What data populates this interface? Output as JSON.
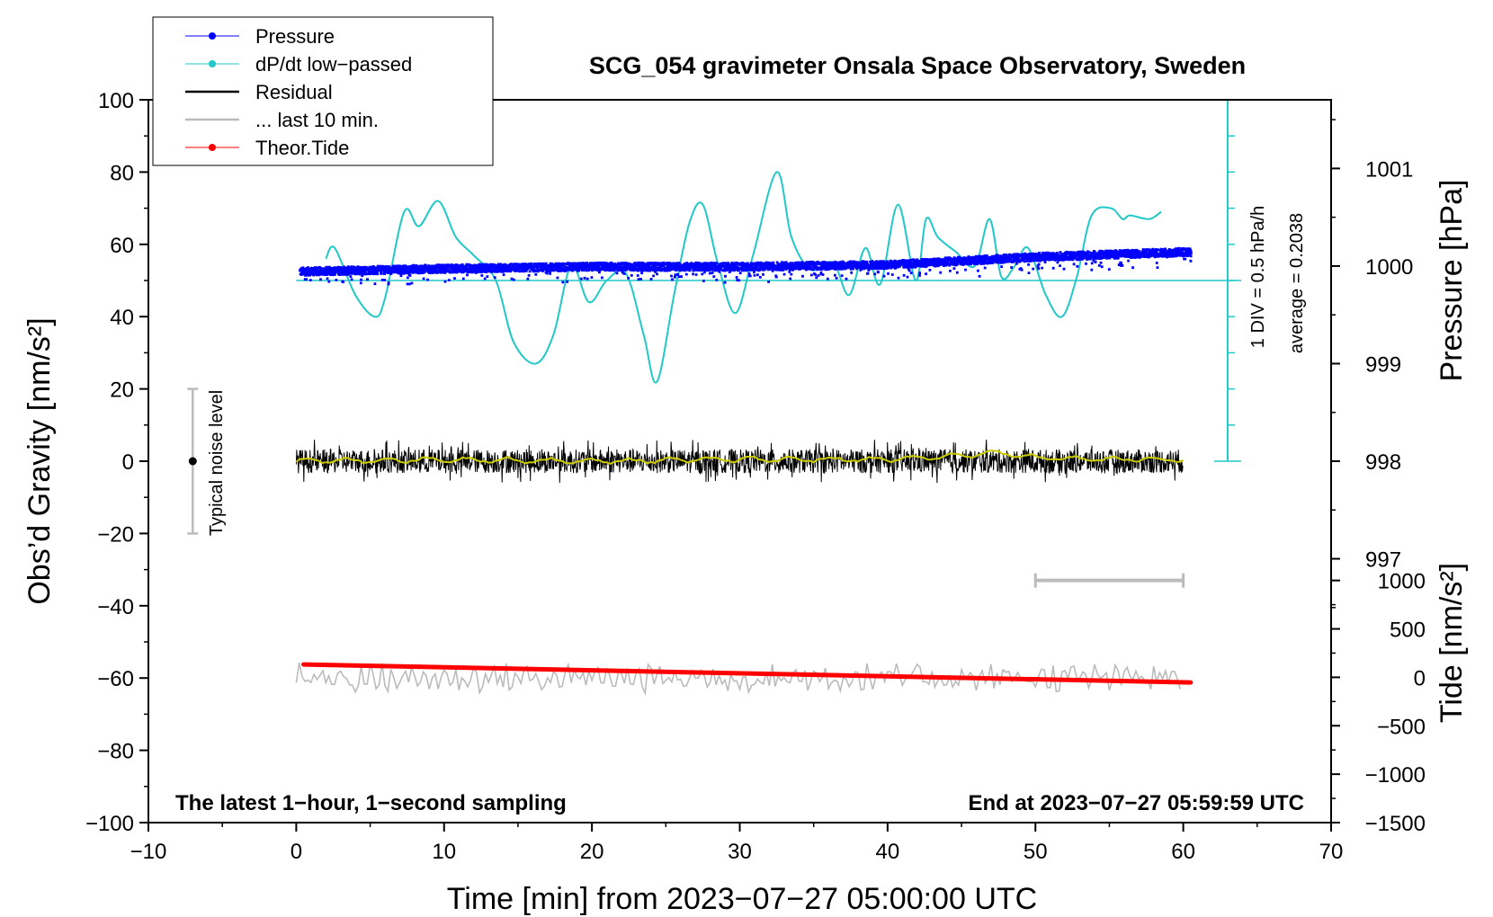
{
  "chart_data": {
    "type": "line",
    "title": "SCG_054 gravimeter Onsala Space Observatory, Sweden",
    "xlabel": "Time [min] from 2023−07−27 05:00:00 UTC",
    "ylabel_left": "Obs’d Gravity [nm/s²]",
    "ylabel_right_top": "Pressure [hPa]",
    "ylabel_right_bottom": "Tide [nm/s²]",
    "xlim": [
      -10,
      70
    ],
    "ylim": [
      -100,
      100
    ],
    "x_ticks": [
      -10,
      0,
      10,
      20,
      30,
      40,
      50,
      60,
      70
    ],
    "x_tick_labels": [
      "−10",
      "0",
      "10",
      "20",
      "30",
      "40",
      "50",
      "60",
      "70"
    ],
    "y_ticks": [
      -100,
      -80,
      -60,
      -40,
      -20,
      0,
      20,
      40,
      60,
      80,
      100
    ],
    "y_tick_labels": [
      "−100",
      "−80",
      "−60",
      "−40",
      "−20",
      "0",
      "20",
      "40",
      "60",
      "80",
      "100"
    ],
    "pressure_axis": {
      "ticks": [
        997,
        998,
        999,
        1000,
        1001
      ],
      "tick_labels": [
        "997",
        "998",
        "999",
        "1000",
        "1001"
      ],
      "anchor_g": [
        0,
        81,
        998,
        1001
      ]
    },
    "tide_axis": {
      "ticks": [
        -1500,
        -1000,
        -500,
        0,
        500,
        1000
      ],
      "tick_labels": [
        "−1500",
        "−1000",
        "−500",
        "0",
        "500",
        "1000"
      ],
      "anchor_g": [
        -100,
        -33,
        -1500,
        1000
      ]
    },
    "legend": [
      {
        "label": "Pressure",
        "color": "#0000ff",
        "marker": "dot"
      },
      {
        "label": "dP/dt low−passed",
        "color": "#20c8c8",
        "marker": "dot"
      },
      {
        "label": "Residual",
        "color": "#000000",
        "marker": "line"
      },
      {
        "label": "... last 10 min.",
        "color": "#bbbbbb",
        "marker": "line"
      },
      {
        "label": "Theor.Tide",
        "color": "#ff0000",
        "marker": "dot"
      }
    ],
    "series": [
      {
        "name": "Pressure",
        "color": "#0000ff",
        "unit": "hPa",
        "x": [
          0,
          10,
          20,
          30,
          40,
          50,
          60
        ],
        "values": [
          999.95,
          999.98,
          1000.0,
          1000.0,
          1000.02,
          1000.1,
          1000.15
        ]
      },
      {
        "name": "dP/dt low−passed",
        "color": "#20c8c8",
        "unit": "nm/s² (plotted)",
        "x": [
          2,
          2.6,
          4,
          5.3,
          6,
          7.3,
          8.3,
          9.6,
          10.8,
          12,
          13.5,
          14.7,
          16.2,
          17.4,
          18.6,
          19.8,
          21,
          22.3,
          23.5,
          24.4,
          25.6,
          26.6,
          27.5,
          28.5,
          29.7,
          30.9,
          32.5,
          33.5,
          34.8,
          36.3,
          37.4,
          38.5,
          39.5,
          40.7,
          41.9,
          42.6,
          43.4,
          44.6,
          45.9,
          46.9,
          47.7,
          48.6,
          49.5,
          50.7,
          51.8,
          52.8,
          53.8,
          55.1,
          55.9,
          56.4,
          57.7,
          58.5
        ],
        "values": [
          56,
          59,
          46,
          40,
          45,
          69,
          65,
          72,
          62,
          57,
          50,
          33,
          27,
          35,
          54,
          44,
          50,
          52,
          35,
          22,
          47,
          66,
          71,
          55,
          41,
          57,
          80,
          62,
          53,
          55,
          46,
          59,
          49,
          71,
          50,
          67,
          62,
          58,
          54,
          67,
          51,
          54,
          59,
          46,
          40,
          51,
          68,
          70,
          67,
          68,
          67,
          69
        ]
      },
      {
        "name": "dP/dt average",
        "value": 0.2038,
        "plotted_at": 50
      },
      {
        "name": "Residual",
        "color": "#000000",
        "x_range": [
          0,
          60
        ],
        "center": 0,
        "amplitude": 6
      },
      {
        "name": "Residual smoothed",
        "color": "#cccc00",
        "x_range": [
          0,
          60
        ],
        "x": [
          0,
          10,
          20,
          30,
          40,
          45,
          47,
          50,
          55,
          60
        ],
        "values": [
          0,
          0.5,
          0,
          0.5,
          0.5,
          1.5,
          2.5,
          1,
          0.5,
          0.5
        ]
      },
      {
        "name": "... last 10 min.",
        "color": "#bbbbbb",
        "x_range": [
          0,
          60
        ],
        "center": -60,
        "amplitude": 4
      },
      {
        "name": "Theor.Tide",
        "color": "#ff0000",
        "unit": "nm/s² (tide axis)",
        "x": [
          0.5,
          60.5
        ],
        "values": [
          133,
          -53
        ]
      }
    ],
    "noise_bar": {
      "x": -7,
      "y_low": -20,
      "y_high": 20,
      "center": 0,
      "label": "Typical noise level"
    },
    "last10_bar": {
      "x_start": 50,
      "x_end": 60,
      "y": -33
    },
    "pressure_scale_bar": {
      "x": 63,
      "y_low": 0,
      "y_high": 100,
      "y_mid": 50,
      "label_div": "1 DIV = 0.5 hPa/h",
      "label_avg": "average = 0.2038"
    },
    "footer_left": "The latest 1−hour, 1−second sampling",
    "footer_right": "End at 2023−07−27 05:59:59 UTC"
  }
}
